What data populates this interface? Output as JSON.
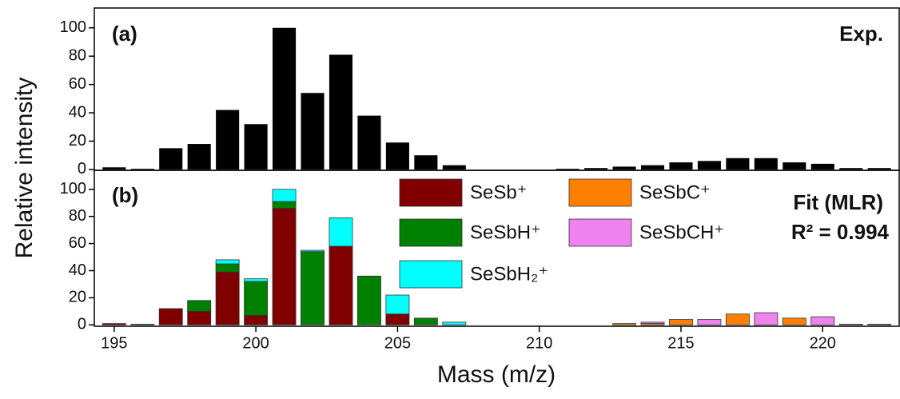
{
  "chart_data": [
    {
      "type": "bar",
      "annotations": [
        "(a)",
        "Exp."
      ],
      "y_label": "Relative intensity",
      "x": [
        195,
        196,
        197,
        198,
        199,
        200,
        201,
        202,
        203,
        204,
        205,
        206,
        207,
        208,
        209,
        210,
        211,
        212,
        213,
        214,
        215,
        216,
        217,
        218,
        219,
        220,
        221,
        222
      ],
      "values": [
        1.5,
        0.5,
        15,
        18,
        42,
        32,
        100,
        54,
        81,
        38,
        19,
        10,
        3,
        0,
        0,
        0,
        0.5,
        1,
        2,
        3,
        5,
        6,
        8,
        8,
        5,
        4,
        1,
        1
      ],
      "color": "#000000",
      "xlim": [
        194.3,
        222.7
      ],
      "ylim": [
        -0.6,
        114
      ],
      "yticks": [
        0,
        20,
        40,
        60,
        80,
        100
      ]
    },
    {
      "type": "stacked_bar",
      "annotations": [
        "(b)",
        "Fit (MLR)",
        "R² = 0.994"
      ],
      "x_label": "Mass (m/z)",
      "x": [
        195,
        196,
        197,
        198,
        199,
        200,
        201,
        202,
        203,
        204,
        205,
        206,
        207,
        208,
        209,
        210,
        211,
        212,
        213,
        214,
        215,
        216,
        217,
        218,
        219,
        220,
        221,
        222
      ],
      "series": [
        {
          "name": "SeSb⁺",
          "color": "#800000",
          "values": [
            1,
            0.5,
            12,
            10,
            39,
            7,
            86,
            0,
            58,
            0,
            8,
            0,
            0,
            0,
            0,
            0,
            0,
            0,
            0,
            0,
            0,
            0,
            0,
            0,
            0,
            0,
            0,
            0
          ]
        },
        {
          "name": "SeSbH⁺",
          "color": "#008000",
          "values": [
            0,
            0,
            0,
            8,
            6,
            25,
            5,
            54,
            0,
            36,
            0,
            5,
            0,
            0,
            0,
            0,
            0,
            0,
            0,
            0,
            0,
            0,
            0,
            0,
            0,
            0,
            0,
            0
          ]
        },
        {
          "name": "SeSbH₂⁺",
          "color": "#00ffff",
          "values": [
            0,
            0,
            0,
            0,
            3,
            2,
            9,
            1,
            21,
            0,
            14,
            0,
            2,
            0,
            0,
            0,
            0,
            0,
            0,
            0,
            0,
            0,
            0,
            0,
            0,
            0,
            0,
            0
          ]
        },
        {
          "name": "SeSbC⁺",
          "color": "#ff8000",
          "values": [
            0,
            0,
            0,
            0,
            0,
            0,
            0,
            0,
            0,
            0,
            0,
            0,
            0,
            0,
            0,
            0,
            0,
            0,
            1,
            1,
            4,
            0,
            8,
            0,
            5,
            0,
            0.5,
            0
          ]
        },
        {
          "name": "SeSbCH⁺",
          "color": "#ee82ee",
          "values": [
            0,
            0,
            0,
            0,
            0,
            0,
            0,
            0,
            0,
            0,
            0,
            0,
            0,
            0,
            0,
            0,
            0,
            0,
            0,
            1,
            0,
            4,
            0,
            9,
            0,
            6,
            0,
            0.5
          ]
        }
      ],
      "xlim": [
        194.3,
        222.7
      ],
      "ylim": [
        -1,
        114
      ],
      "yticks": [
        0,
        20,
        40,
        60,
        80,
        100
      ],
      "xticks": [
        195,
        200,
        205,
        210,
        215,
        220
      ]
    }
  ]
}
